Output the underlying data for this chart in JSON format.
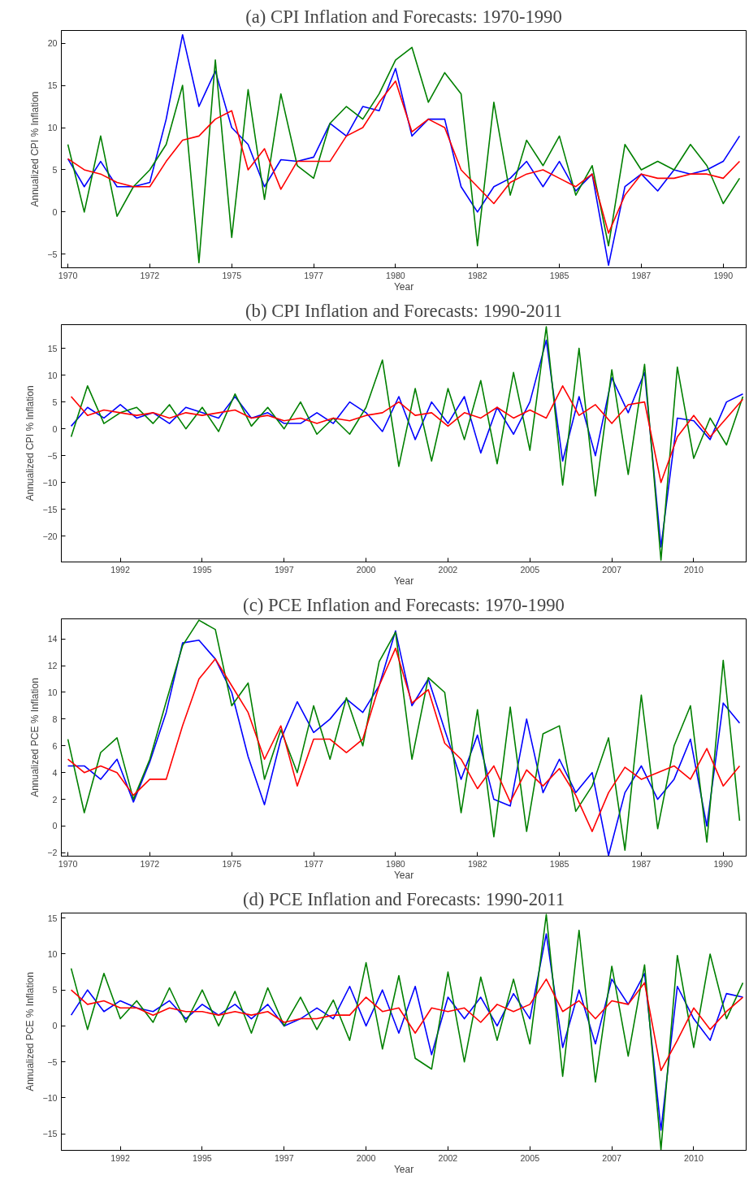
{
  "chart_data": [
    {
      "type": "line",
      "title": "(a) CPI Inflation and Forecasts: 1970-1990",
      "xlabel": "Year",
      "ylabel": "Annualized CPI % Inflation",
      "x": [
        1970,
        1970.5,
        1971,
        1971.5,
        1972,
        1972.5,
        1973,
        1973.5,
        1974,
        1974.5,
        1975,
        1975.5,
        1976,
        1976.5,
        1977,
        1977.5,
        1978,
        1978.5,
        1979,
        1979.5,
        1980,
        1980.5,
        1981,
        1981.5,
        1982,
        1982.5,
        1983,
        1983.5,
        1984,
        1984.5,
        1985,
        1985.5,
        1986,
        1986.5,
        1987,
        1987.5,
        1988,
        1988.5,
        1989,
        1989.5,
        1990,
        1990.5
      ],
      "xlim": [
        1969.8,
        1990.7
      ],
      "ylim": [
        -6.6,
        21.5
      ],
      "xticks": [
        1970,
        {
          "value": 1972.5,
          "label": "1972"
        },
        1975,
        {
          "value": 1977.5,
          "label": "1977"
        },
        1980,
        {
          "value": 1982.5,
          "label": "1982"
        },
        1985,
        {
          "value": 1987.5,
          "label": "1987"
        },
        1990
      ],
      "yticks": [
        -5,
        0,
        5,
        10,
        15,
        20
      ],
      "grid": false,
      "series": [
        {
          "color": "#0000ff",
          "values": [
            6.3,
            3,
            6,
            3,
            3,
            3.5,
            11,
            21,
            12.5,
            16.7,
            10,
            8,
            3,
            6.2,
            6,
            6.5,
            10.5,
            9,
            12.5,
            12,
            17,
            9,
            11,
            11,
            3,
            0,
            3,
            4,
            6,
            3,
            6,
            2.5,
            4.5,
            -6.3,
            3,
            4.5,
            2.5,
            5,
            4.5,
            5,
            6,
            9
          ]
        },
        {
          "color": "#008000",
          "values": [
            8,
            0,
            9,
            -0.5,
            3,
            5,
            8,
            15,
            -6,
            18,
            -3,
            14.5,
            1.5,
            14,
            5.5,
            4,
            10.5,
            12.5,
            11,
            14,
            18,
            19.5,
            13,
            16.5,
            14,
            -4,
            13,
            2,
            8.5,
            5.5,
            9,
            2,
            5.5,
            -4,
            8,
            5,
            6,
            5,
            8,
            5.5,
            1,
            4
          ]
        },
        {
          "color": "#ff0000",
          "values": [
            6.3,
            5,
            4.5,
            3.5,
            3,
            3,
            6,
            8.5,
            9,
            11,
            12,
            5,
            7.5,
            2.7,
            6,
            6,
            6,
            9,
            10,
            13,
            15.5,
            9.5,
            11,
            10,
            5,
            3,
            1,
            3.5,
            4.5,
            5,
            4,
            3,
            4.5,
            -2.5,
            2,
            4.5,
            4,
            4,
            4.5,
            4.5,
            4,
            6
          ]
        }
      ]
    },
    {
      "type": "line",
      "title": "(b) CPI Inflation and Forecasts: 1990-2011",
      "xlabel": "Year",
      "ylabel": "Annualized CPI % Inflation",
      "x": [
        1991,
        1991.5,
        1992,
        1992.5,
        1993,
        1993.5,
        1994,
        1994.5,
        1995,
        1995.5,
        1996,
        1996.5,
        1997,
        1997.5,
        1998,
        1998.5,
        1999,
        1999.5,
        2000,
        2000.5,
        2001,
        2001.5,
        2002,
        2002.5,
        2003,
        2003.5,
        2004,
        2004.5,
        2005,
        2005.5,
        2006,
        2006.5,
        2007,
        2007.5,
        2008,
        2008.5,
        2009,
        2009.5,
        2010,
        2010.5,
        2011,
        2011.5
      ],
      "xlim": [
        1990.7,
        2011.6
      ],
      "ylim": [
        -24.8,
        19.4
      ],
      "xticks": [
        {
          "value": 1992.5,
          "label": "1992"
        },
        1995,
        {
          "value": 1997.5,
          "label": "1997"
        },
        2000,
        {
          "value": 2002.5,
          "label": "2002"
        },
        2005,
        {
          "value": 2007.5,
          "label": "2007"
        },
        2010
      ],
      "yticks": [
        -20,
        -15,
        -10,
        -5,
        0,
        5,
        10,
        15
      ],
      "grid": false,
      "series": [
        {
          "color": "#0000ff",
          "values": [
            0.5,
            4,
            2,
            4.5,
            2,
            3,
            1,
            4,
            3,
            2,
            6,
            2,
            3,
            1,
            1,
            3,
            1,
            5,
            3,
            -0.5,
            6,
            -2,
            5,
            1,
            6,
            -4.5,
            4,
            -1,
            5,
            16.5,
            -6,
            6,
            -5,
            9.5,
            3,
            10.5,
            -22,
            2,
            1.5,
            -2,
            5,
            6.5
          ]
        },
        {
          "color": "#008000",
          "values": [
            -1.5,
            8,
            1,
            3,
            4,
            1,
            4.5,
            0,
            4,
            -0.5,
            6.5,
            0.5,
            4,
            0,
            5,
            -1,
            2,
            -1,
            4,
            12.8,
            -7,
            7.5,
            -6,
            7.5,
            -2,
            9,
            -6.5,
            10.5,
            -4,
            19,
            -10.5,
            15,
            -12.5,
            11,
            -8.5,
            12,
            -24.5,
            11.5,
            -5.5,
            2,
            -3,
            6
          ]
        },
        {
          "color": "#ff0000",
          "values": [
            6,
            2.5,
            3.5,
            3,
            2.5,
            3,
            2,
            3,
            2.5,
            3,
            3.5,
            2,
            2.5,
            1.5,
            2,
            1,
            2,
            1.5,
            2.5,
            3,
            5,
            2.5,
            3,
            0.5,
            3,
            2,
            4,
            2,
            3.5,
            2,
            8,
            2.5,
            4.5,
            1,
            4.5,
            5,
            -10,
            -1.5,
            2.5,
            -1.5,
            2,
            5.5
          ]
        }
      ]
    },
    {
      "type": "line",
      "title": "(c) PCE Inflation and Forecasts: 1970-1990",
      "xlabel": "Year",
      "ylabel": "Annualized PCE % Inflation",
      "x": [
        1970,
        1970.5,
        1971,
        1971.5,
        1972,
        1972.5,
        1973,
        1973.5,
        1974,
        1974.5,
        1975,
        1975.5,
        1976,
        1976.5,
        1977,
        1977.5,
        1978,
        1978.5,
        1979,
        1979.5,
        1980,
        1980.5,
        1981,
        1981.5,
        1982,
        1982.5,
        1983,
        1983.5,
        1984,
        1984.5,
        1985,
        1985.5,
        1986,
        1986.5,
        1987,
        1987.5,
        1988,
        1988.5,
        1989,
        1989.5,
        1990,
        1990.5
      ],
      "xlim": [
        1969.8,
        1990.7
      ],
      "ylim": [
        -2.25,
        15.5
      ],
      "xticks": [
        1970,
        {
          "value": 1972.5,
          "label": "1972"
        },
        1975,
        {
          "value": 1977.5,
          "label": "1977"
        },
        1980,
        {
          "value": 1982.5,
          "label": "1982"
        },
        1985,
        {
          "value": 1987.5,
          "label": "1987"
        },
        1990
      ],
      "yticks": [
        -2,
        0,
        2,
        4,
        6,
        8,
        10,
        12,
        14
      ],
      "grid": false,
      "series": [
        {
          "color": "#0000ff",
          "values": [
            4.5,
            4.5,
            3.5,
            5,
            1.8,
            4.8,
            8.5,
            13.7,
            13.9,
            12.5,
            10,
            5.2,
            1.6,
            6.5,
            9.3,
            7,
            8,
            9.5,
            8.5,
            10.5,
            14.6,
            9,
            11,
            7.2,
            3.5,
            6.8,
            2,
            1.5,
            8,
            2.5,
            5,
            2.5,
            4,
            -2.2,
            2.5,
            4.5,
            2,
            3.5,
            6.5,
            0,
            9.2,
            7.7
          ]
        },
        {
          "color": "#008000",
          "values": [
            6.5,
            1,
            5.5,
            6.6,
            2,
            5,
            9.3,
            13.5,
            15.4,
            14.7,
            9,
            10.7,
            3.5,
            7.2,
            4,
            9,
            5,
            9.6,
            6,
            12.3,
            14.5,
            5,
            11.1,
            10,
            1,
            8.7,
            -0.8,
            8.9,
            -0.4,
            6.9,
            7.5,
            1.1,
            3,
            6.6,
            -1.8,
            9.8,
            -0.2,
            6,
            9,
            -1.2,
            12.4,
            0.4
          ]
        },
        {
          "color": "#ff0000",
          "values": [
            5,
            4,
            4.5,
            4,
            2.3,
            3.5,
            3.5,
            7.5,
            11,
            12.5,
            10.5,
            8.5,
            5,
            7.5,
            3,
            6.5,
            6.5,
            5.5,
            6.5,
            10.5,
            13.3,
            9.2,
            10.2,
            6.2,
            5,
            2.8,
            4.5,
            1.8,
            4.2,
            3,
            4.3,
            2.3,
            -0.4,
            2.5,
            4.4,
            3.5,
            4,
            4.5,
            3.5,
            5.8,
            3,
            4.5
          ]
        }
      ]
    },
    {
      "type": "line",
      "title": "(d) PCE Inflation and Forecasts: 1990-2011",
      "xlabel": "Year",
      "ylabel": "Annualized PCE % Inflation",
      "x": [
        1991,
        1991.5,
        1992,
        1992.5,
        1993,
        1993.5,
        1994,
        1994.5,
        1995,
        1995.5,
        1996,
        1996.5,
        1997,
        1997.5,
        1998,
        1998.5,
        1999,
        1999.5,
        2000,
        2000.5,
        2001,
        2001.5,
        2002,
        2002.5,
        2003,
        2003.5,
        2004,
        2004.5,
        2005,
        2005.5,
        2006,
        2006.5,
        2007,
        2007.5,
        2008,
        2008.5,
        2009,
        2009.5,
        2010,
        2010.5,
        2011,
        2011.5
      ],
      "xlim": [
        1990.7,
        2011.6
      ],
      "ylim": [
        -17.3,
        15.7
      ],
      "xticks": [
        {
          "value": 1992.5,
          "label": "1992"
        },
        1995,
        {
          "value": 1997.5,
          "label": "1997"
        },
        2000,
        {
          "value": 2002.5,
          "label": "2002"
        },
        2005,
        {
          "value": 2007.5,
          "label": "2007"
        },
        2010
      ],
      "yticks": [
        -15,
        -10,
        -5,
        0,
        5,
        10,
        15
      ],
      "grid": false,
      "series": [
        {
          "color": "#0000ff",
          "values": [
            1.5,
            5,
            2,
            3.5,
            2.5,
            2,
            3.5,
            1,
            3,
            1.5,
            3,
            1,
            3,
            0,
            1,
            2.5,
            1,
            5.5,
            0,
            5,
            -1,
            5.5,
            -4,
            4,
            1,
            4,
            0,
            4.5,
            1,
            12.8,
            -3,
            5,
            -2.5,
            6.5,
            3,
            7.3,
            -14.5,
            5.5,
            1,
            -2,
            4.5,
            4
          ]
        },
        {
          "color": "#008000",
          "values": [
            8,
            -0.5,
            7.3,
            1,
            3.5,
            0.5,
            5.3,
            0.5,
            5,
            0,
            4.8,
            -1,
            5.3,
            0,
            4,
            -0.5,
            3.6,
            -2,
            8.8,
            -3.2,
            7,
            -4.5,
            -6,
            7.5,
            -5,
            6.8,
            -2,
            6.5,
            -2.5,
            15.5,
            -7,
            13.3,
            -7.8,
            8.3,
            -4.2,
            8.5,
            -17.2,
            9.8,
            -3,
            10,
            1,
            6
          ]
        },
        {
          "color": "#ff0000",
          "values": [
            5,
            3,
            3.5,
            2.5,
            2.5,
            1.5,
            2.5,
            2,
            2,
            1.5,
            2,
            1.5,
            2,
            0.5,
            1,
            1,
            1.5,
            1.5,
            4,
            2,
            2.5,
            -1,
            2.5,
            2,
            2.5,
            0.5,
            3,
            2,
            3,
            6.5,
            2,
            3.5,
            1,
            3.5,
            3,
            6,
            -6.2,
            -2,
            2.5,
            -0.5,
            2,
            4
          ]
        }
      ]
    }
  ]
}
